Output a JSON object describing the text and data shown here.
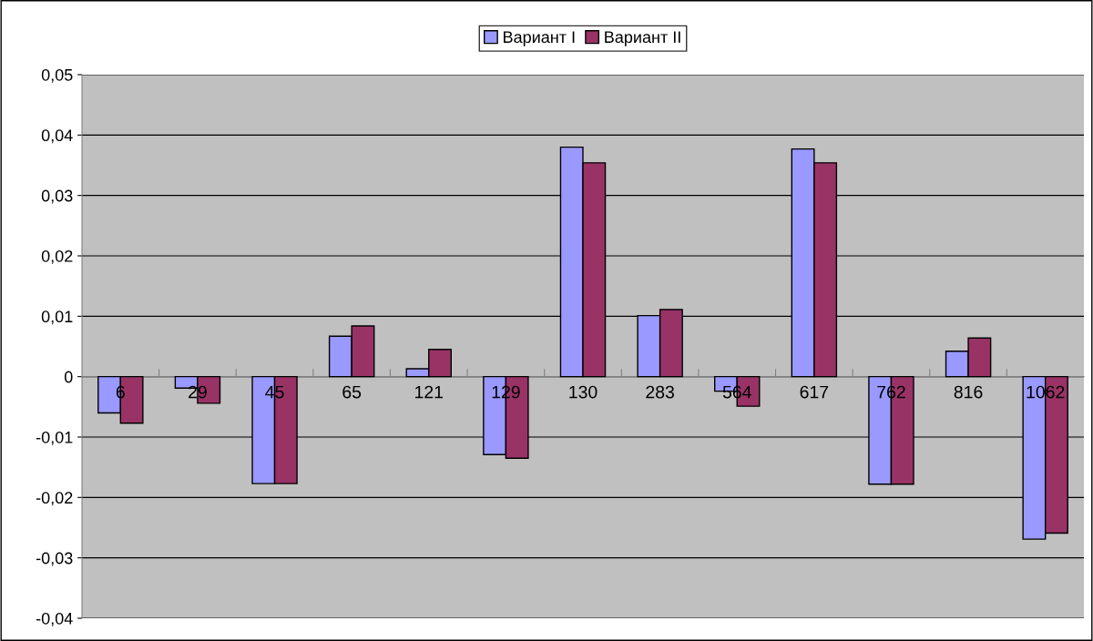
{
  "chart_data": {
    "type": "bar",
    "categories": [
      "6",
      "29",
      "45",
      "65",
      "121",
      "129",
      "130",
      "283",
      "564",
      "617",
      "762",
      "816",
      "1062"
    ],
    "series": [
      {
        "name": "Вариант I",
        "color": "#9999ff",
        "values": [
          -0.006,
          -0.0019,
          -0.0177,
          0.0067,
          0.0013,
          -0.0129,
          0.038,
          0.0101,
          -0.0024,
          0.0377,
          -0.0178,
          0.0042,
          -0.0269
        ]
      },
      {
        "name": "Вариант II",
        "color": "#993366",
        "values": [
          -0.0077,
          -0.0044,
          -0.0177,
          0.0084,
          0.0045,
          -0.0135,
          0.0354,
          0.0111,
          -0.0049,
          0.0354,
          -0.0178,
          0.0064,
          -0.0259
        ]
      }
    ],
    "ylim": [
      -0.04,
      0.05
    ],
    "yticks": [
      {
        "value": -0.04,
        "label": "-0,04"
      },
      {
        "value": -0.03,
        "label": "-0,03"
      },
      {
        "value": -0.02,
        "label": "-0,02"
      },
      {
        "value": -0.01,
        "label": "-0,01"
      },
      0,
      {
        "value": 0.01,
        "label": "0,01"
      },
      {
        "value": 0.02,
        "label": "0,02"
      },
      {
        "value": 0.03,
        "label": "0,03"
      },
      {
        "value": 0.04,
        "label": "0,04"
      },
      {
        "value": 0.05,
        "label": "0,05"
      }
    ],
    "grid": "y",
    "legend": "top"
  }
}
